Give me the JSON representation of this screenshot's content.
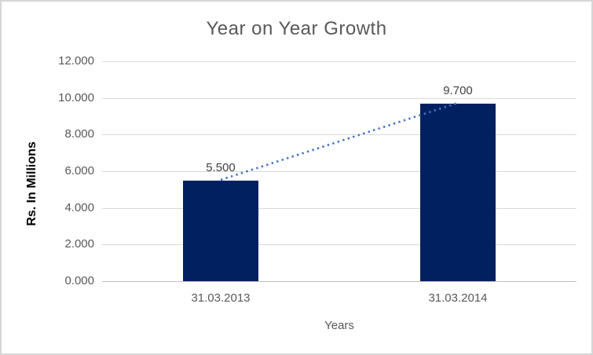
{
  "chart_data": {
    "type": "bar",
    "title": "Year on Year Growth",
    "xlabel": "Years",
    "ylabel": "Rs. In Millions",
    "categories": [
      "31.03.2013",
      "31.03.2014"
    ],
    "values": [
      5.5,
      9.7
    ],
    "data_labels": [
      "5.500",
      "9.700"
    ],
    "y_ticks": [
      "12.000",
      "10.000",
      "8.000",
      "6.000",
      "4.000",
      "2.000",
      "0.000"
    ],
    "ylim": [
      0,
      12
    ],
    "grid": true,
    "legend": "none",
    "bar_color": "#002060",
    "trendline": {
      "show": true,
      "style": "dotted",
      "color": "#4472c4",
      "from_value": 5.5,
      "to_value": 9.7
    },
    "colors": {
      "title_text": "#595959",
      "axis_text": "#595959",
      "data_label_text": "#404040",
      "gridline": "#d9d9d9",
      "axis_line": "#bfbfbf",
      "frame_border": "#d6d6d6"
    }
  }
}
